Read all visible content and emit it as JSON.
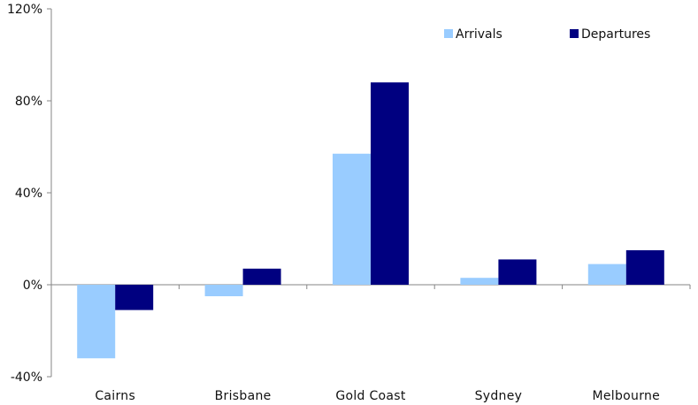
{
  "chart_data": {
    "type": "bar",
    "categories": [
      "Cairns",
      "Brisbane",
      "Gold Coast",
      "Sydney",
      "Melbourne"
    ],
    "series": [
      {
        "name": "Arrivals",
        "values": [
          -32,
          -5,
          57,
          3,
          9
        ],
        "color": "#99ccff"
      },
      {
        "name": "Departures",
        "values": [
          -11,
          7,
          88,
          11,
          15
        ],
        "color": "#000080"
      }
    ],
    "y_ticks": [
      {
        "value": -40,
        "label": "-40%"
      },
      {
        "value": 0,
        "label": "0%"
      },
      {
        "value": 40,
        "label": "40%"
      },
      {
        "value": 80,
        "label": "80%"
      },
      {
        "value": 120,
        "label": "120%"
      }
    ],
    "ylim": [
      -40,
      120
    ],
    "grid": false,
    "legend_position": "top-right",
    "axis_color": "#868686"
  }
}
